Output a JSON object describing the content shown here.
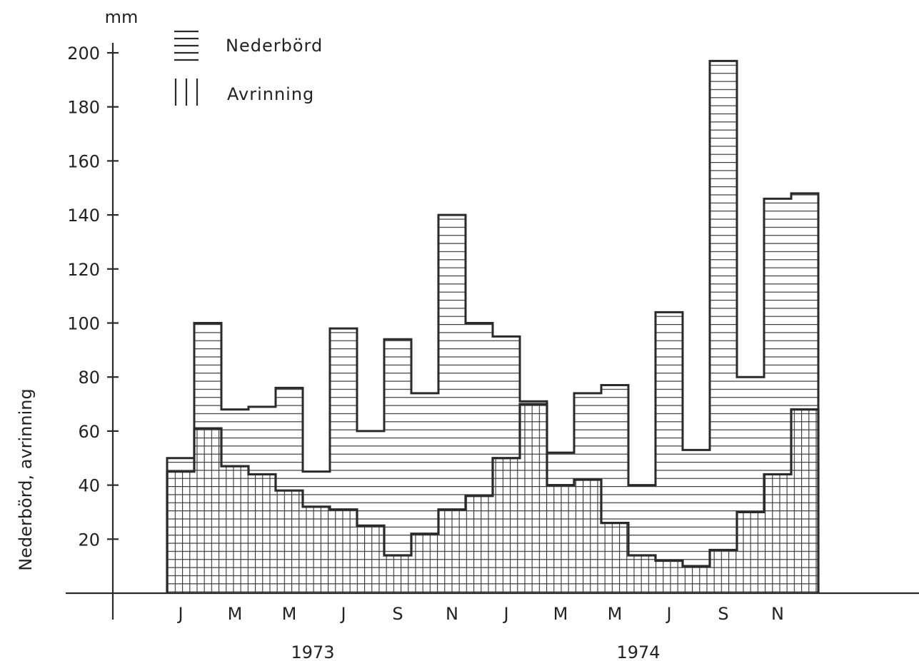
{
  "chart_data": {
    "type": "bar",
    "subtype": "step-histogram-overlay",
    "unit_label": "mm",
    "ylabel": "Nederbörd, avrinning",
    "xlabel": "",
    "ylim": [
      0,
      200
    ],
    "yticks": [
      20,
      40,
      60,
      80,
      100,
      120,
      140,
      160,
      180,
      200
    ],
    "grid": false,
    "legend_position": "top-left",
    "month_tick_labels": [
      "J",
      "M",
      "M",
      "J",
      "S",
      "N",
      "J",
      "M",
      "M",
      "J",
      "S",
      "N"
    ],
    "year_labels": [
      "1973",
      "1974"
    ],
    "categories": [
      "Jan 1973",
      "Feb 1973",
      "Mar 1973",
      "Apr 1973",
      "May 1973",
      "Jun 1973",
      "Jul 1973",
      "Aug 1973",
      "Sep 1973",
      "Oct 1973",
      "Nov 1973",
      "Dec 1973",
      "Jan 1974",
      "Feb 1974",
      "Mar 1974",
      "Apr 1974",
      "May 1974",
      "Jun 1974",
      "Jul 1974",
      "Aug 1974",
      "Sep 1974",
      "Oct 1974",
      "Nov 1974",
      "Dec 1974"
    ],
    "series": [
      {
        "name": "Nederbörd",
        "pattern": "horizontal",
        "values": [
          50,
          100,
          68,
          69,
          76,
          45,
          98,
          60,
          94,
          74,
          140,
          100,
          95,
          71,
          52,
          74,
          77,
          40,
          104,
          53,
          197,
          80,
          146,
          148
        ],
        "half_steps": [
          [
            null,
            null
          ],
          [
            null,
            null
          ],
          [
            null,
            null
          ],
          [
            null,
            null
          ],
          [
            null,
            null
          ],
          [
            null,
            null
          ],
          [
            null,
            null
          ],
          [
            null,
            null
          ],
          [
            null,
            null
          ],
          [
            null,
            null
          ],
          [
            null,
            null
          ],
          [
            null,
            null
          ],
          [
            null,
            null
          ],
          [
            null,
            null
          ],
          [
            null,
            null
          ],
          [
            null,
            null
          ],
          [
            null,
            null
          ],
          [
            null,
            null
          ],
          [
            null,
            null
          ],
          [
            null,
            null
          ],
          [
            null,
            null
          ],
          [
            null,
            null
          ],
          [
            null,
            null
          ],
          [
            null,
            null
          ]
        ]
      },
      {
        "name": "Avrinning",
        "pattern": "vertical",
        "values": [
          45,
          61,
          47,
          44,
          38,
          32,
          31,
          25,
          14,
          22,
          31,
          36,
          50,
          70,
          40,
          42,
          26,
          14,
          12,
          10,
          16,
          30,
          44,
          68
        ]
      }
    ],
    "pen_color": "#2a2a2a",
    "hatch_color": "#3a3a3a"
  }
}
